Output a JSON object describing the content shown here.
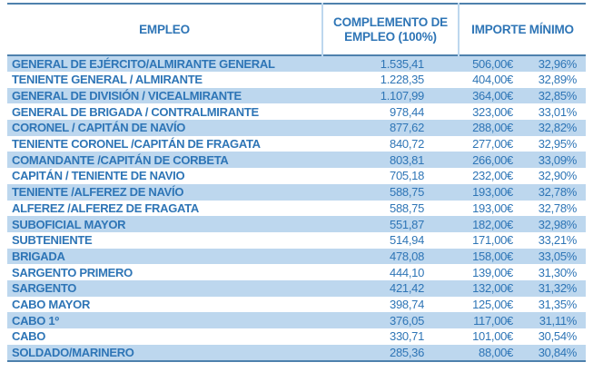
{
  "colors": {
    "text_blue": "#2e75b6",
    "stripe_blue": "#bdd7ee",
    "rule_blue": "#4e81ad"
  },
  "table": {
    "columns": {
      "empleo": "EMPLEO",
      "complemento": "COMPLEMENTO DE EMPLEO (100%)",
      "importe": "IMPORTE MÍNIMO"
    },
    "rows": [
      {
        "empleo": "GENERAL DE EJÉRCITO/ALMIRANTE GENERAL",
        "complemento": "1.535,41",
        "importe": "506,00€",
        "porcentaje": "32,96%"
      },
      {
        "empleo": "TENIENTE GENERAL / ALMIRANTE",
        "complemento": "1.228,35",
        "importe": "404,00€",
        "porcentaje": "32,89%"
      },
      {
        "empleo": "GENERAL DE DIVISIÓN / VICEALMIRANTE",
        "complemento": "1.107,99",
        "importe": "364,00€",
        "porcentaje": "32,85%"
      },
      {
        "empleo": "GENERAL DE BRIGADA / CONTRALMIRANTE",
        "complemento": "978,44",
        "importe": "323,00€",
        "porcentaje": "33,01%"
      },
      {
        "empleo": "CORONEL / CAPITÁN DE NAVÍO",
        "complemento": "877,62",
        "importe": "288,00€",
        "porcentaje": "32,82%"
      },
      {
        "empleo": "TENIENTE CORONEL /CAPITÁN DE FRAGATA",
        "complemento": "840,72",
        "importe": "277,00€",
        "porcentaje": "32,95%"
      },
      {
        "empleo": "COMANDANTE /CAPITÁN DE CORBETA",
        "complemento": "803,81",
        "importe": "266,00€",
        "porcentaje": "33,09%"
      },
      {
        "empleo": "CAPITÁN / TENIENTE DE NAVIO",
        "complemento": "705,18",
        "importe": "232,00€",
        "porcentaje": "32,90%"
      },
      {
        "empleo": "TENIENTE /ALFEREZ DE NAVÍO",
        "complemento": "588,75",
        "importe": "193,00€",
        "porcentaje": "32,78%"
      },
      {
        "empleo": "ALFEREZ /ALFEREZ DE FRAGATA",
        "complemento": "588,75",
        "importe": "193,00€",
        "porcentaje": "32,78%"
      },
      {
        "empleo": "SUBOFICIAL MAYOR",
        "complemento": "551,87",
        "importe": "182,00€",
        "porcentaje": "32,98%"
      },
      {
        "empleo": "SUBTENIENTE",
        "complemento": "514,94",
        "importe": "171,00€",
        "porcentaje": "33,21%"
      },
      {
        "empleo": "BRIGADA",
        "complemento": "478,08",
        "importe": "158,00€",
        "porcentaje": "33,05%"
      },
      {
        "empleo": "SARGENTO PRIMERO",
        "complemento": "444,10",
        "importe": "139,00€",
        "porcentaje": "31,30%"
      },
      {
        "empleo": "SARGENTO",
        "complemento": "421,42",
        "importe": "132,00€",
        "porcentaje": "31,32%"
      },
      {
        "empleo": "CABO MAYOR",
        "complemento": "398,74",
        "importe": "125,00€",
        "porcentaje": "31,35%"
      },
      {
        "empleo": "CABO 1º",
        "complemento": "376,05",
        "importe": "117,00€",
        "porcentaje": "31,11%"
      },
      {
        "empleo": "CABO",
        "complemento": "330,71",
        "importe": "101,00€",
        "porcentaje": "30,54%"
      },
      {
        "empleo": "SOLDADO/MARINERO",
        "complemento": "285,36",
        "importe": "88,00€",
        "porcentaje": "30,84%"
      }
    ]
  }
}
